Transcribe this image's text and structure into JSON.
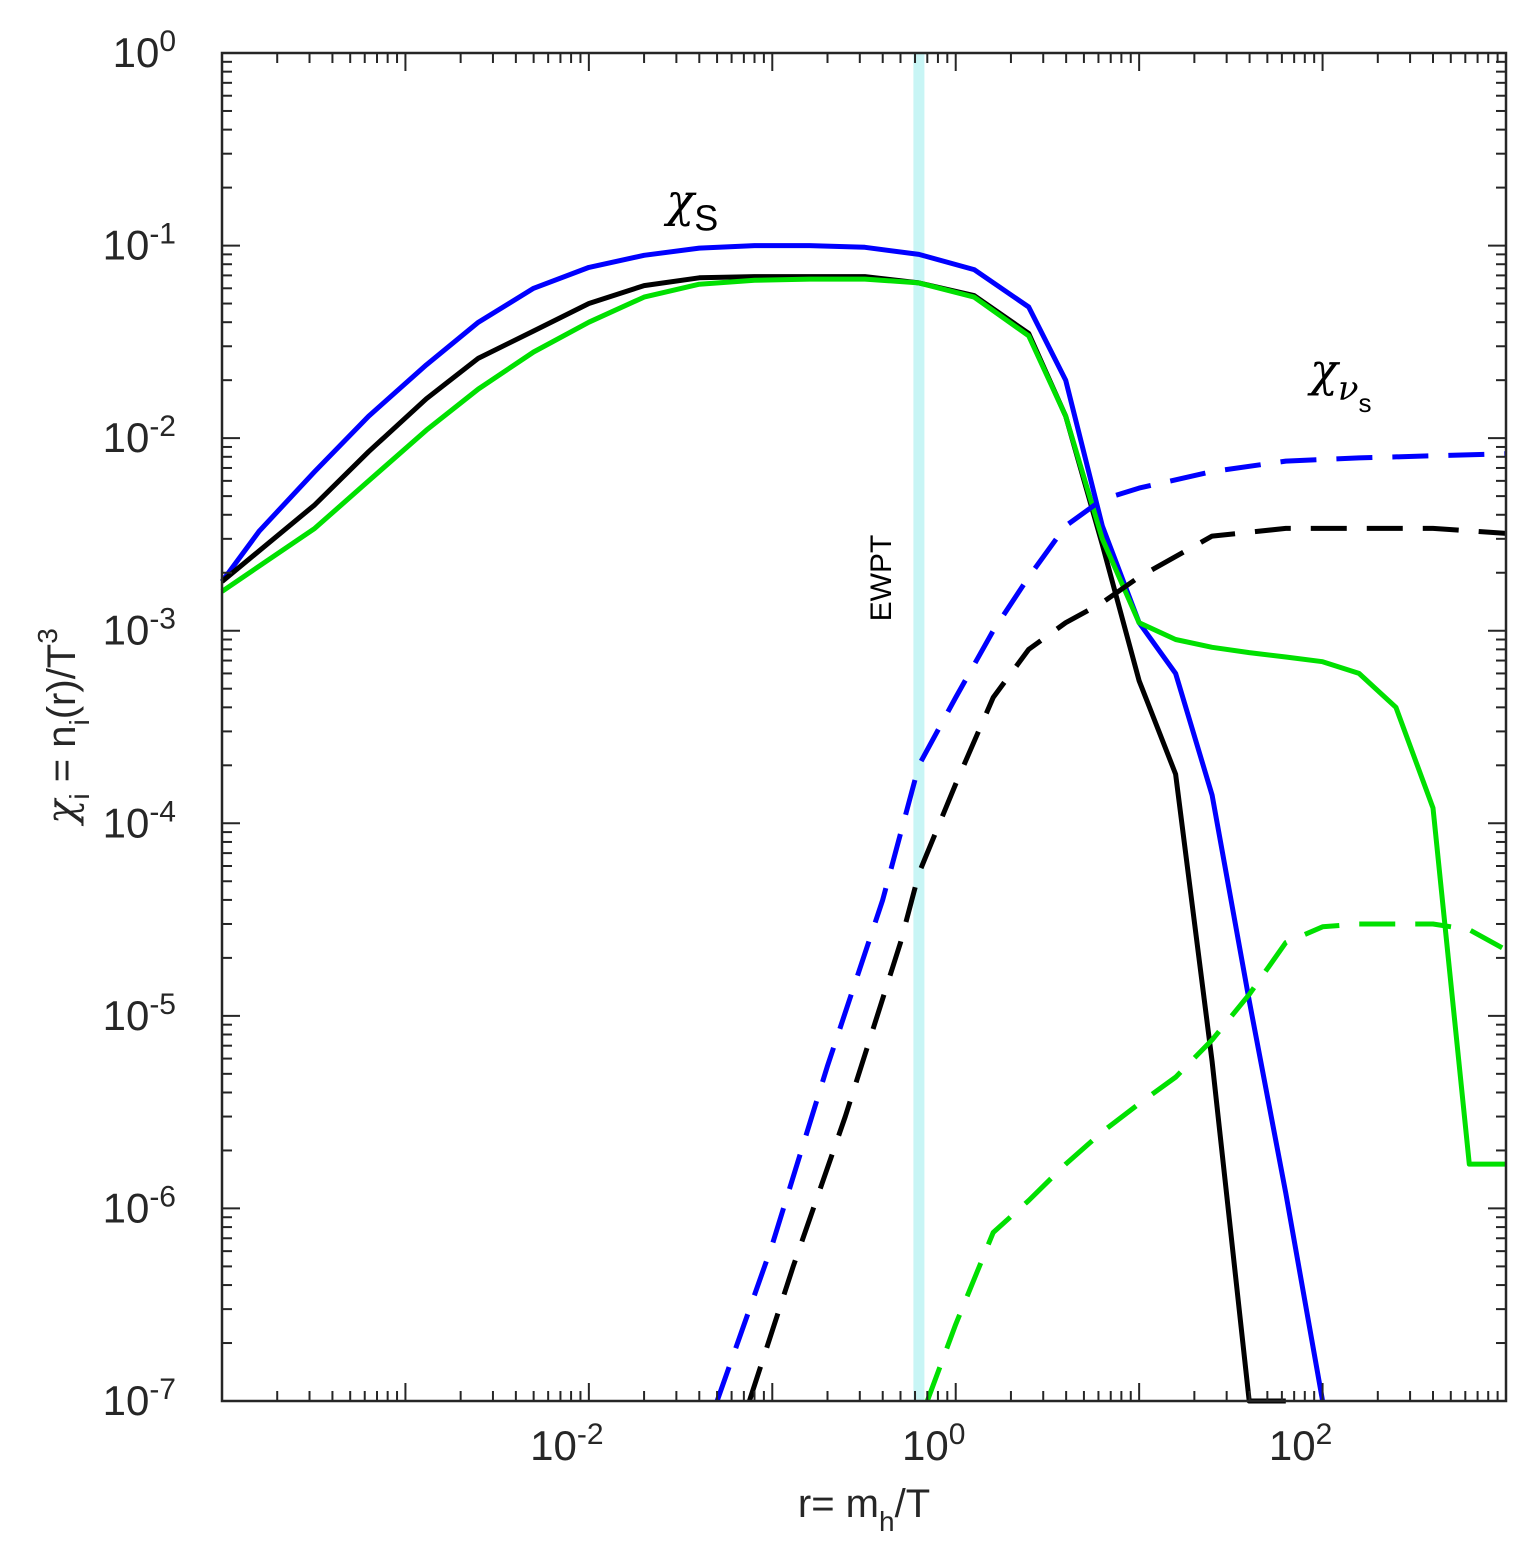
{
  "chart_data": {
    "type": "line",
    "xscale": "log",
    "yscale": "log",
    "xlim": [
      0.0001,
      1000
    ],
    "ylim": [
      1e-07,
      1
    ],
    "xlabel": {
      "base": "r= m",
      "sub": "h",
      "tail": "/T"
    },
    "ylabel": {
      "base": "χ",
      "sub": "i",
      "mid": " = n",
      "sub2": "i",
      "tail": "(r)/T",
      "sup": "3"
    },
    "x_ticks": [
      {
        "value": 0.01,
        "base": "10",
        "exp": "-2"
      },
      {
        "value": 1,
        "base": "10",
        "exp": "0"
      },
      {
        "value": 100,
        "base": "10",
        "exp": "2"
      }
    ],
    "y_ticks": [
      {
        "value": 1,
        "base": "10",
        "exp": "0"
      },
      {
        "value": 0.1,
        "base": "10",
        "exp": "-1"
      },
      {
        "value": 0.01,
        "base": "10",
        "exp": "-2"
      },
      {
        "value": 0.001,
        "base": "10",
        "exp": "-3"
      },
      {
        "value": 0.0001,
        "base": "10",
        "exp": "-4"
      },
      {
        "value": 1e-05,
        "base": "10",
        "exp": "-5"
      },
      {
        "value": 1e-06,
        "base": "10",
        "exp": "-6"
      },
      {
        "value": 1e-07,
        "base": "10",
        "exp": "-7"
      }
    ],
    "grid": false,
    "vline": {
      "x": 0.63,
      "label": "EWPT",
      "color": "#c8f5f5"
    },
    "annotations": [
      {
        "text": "χ",
        "sub": "S",
        "x": 0.03,
        "y": 0.18
      },
      {
        "text": "χ",
        "sub": "ν",
        "subsub": "s",
        "x": 100,
        "y": 0.018
      }
    ],
    "series": [
      {
        "color": "#0000ff",
        "style": "solid",
        "x": [
          0.0001,
          0.00016,
          0.00032,
          0.00063,
          0.0013,
          0.0025,
          0.005,
          0.01,
          0.02,
          0.04,
          0.08,
          0.16,
          0.32,
          0.63,
          1.26,
          2.5,
          3.98,
          6.3,
          10,
          15.8,
          25,
          39.8,
          63,
          100
        ],
        "y": [
          0.0018,
          0.0033,
          0.0067,
          0.013,
          0.024,
          0.04,
          0.06,
          0.077,
          0.089,
          0.097,
          0.1,
          0.1,
          0.098,
          0.09,
          0.075,
          0.048,
          0.02,
          0.0035,
          0.0011,
          0.0006,
          0.00014,
          1.2e-05,
          1.2e-06,
          1e-07
        ]
      },
      {
        "color": "#000000",
        "style": "solid",
        "x": [
          0.0001,
          0.00032,
          0.00063,
          0.0013,
          0.0025,
          0.005,
          0.01,
          0.02,
          0.04,
          0.08,
          0.16,
          0.32,
          0.63,
          1.26,
          2.5,
          3.98,
          6.3,
          10,
          15.8,
          25,
          39.8,
          63
        ],
        "y": [
          0.0018,
          0.0045,
          0.0085,
          0.016,
          0.026,
          0.036,
          0.05,
          0.062,
          0.068,
          0.069,
          0.069,
          0.069,
          0.064,
          0.055,
          0.035,
          0.013,
          0.0028,
          0.00055,
          0.00018,
          5.8e-06,
          1e-07,
          1e-07
        ]
      },
      {
        "color": "#00e000",
        "style": "solid",
        "x": [
          0.0001,
          0.00032,
          0.00063,
          0.0013,
          0.0025,
          0.005,
          0.01,
          0.02,
          0.04,
          0.08,
          0.16,
          0.32,
          0.63,
          1.26,
          2.5,
          3.98,
          6.3,
          10,
          15.8,
          25,
          39.8,
          63,
          100,
          158,
          251,
          400,
          631,
          1000
        ],
        "y": [
          0.0016,
          0.0034,
          0.006,
          0.011,
          0.018,
          0.028,
          0.04,
          0.054,
          0.063,
          0.066,
          0.067,
          0.067,
          0.064,
          0.054,
          0.034,
          0.013,
          0.003,
          0.0011,
          0.0009,
          0.00082,
          0.00077,
          0.00073,
          0.00069,
          0.0006,
          0.0004,
          0.00012,
          1.7e-06,
          1.7e-06
        ]
      },
      {
        "color": "#0000ff",
        "style": "dashed",
        "x": [
          0.05,
          0.1,
          0.2,
          0.4,
          0.63,
          1,
          1.6,
          2.5,
          3.98,
          6.3,
          10,
          25,
          63,
          158,
          400,
          1000
        ],
        "y": [
          1e-07,
          6.5e-07,
          5.5e-06,
          4e-05,
          0.0002,
          0.00045,
          0.001,
          0.0019,
          0.0035,
          0.0048,
          0.0055,
          0.0067,
          0.0076,
          0.0079,
          0.0081,
          0.0083
        ]
      },
      {
        "color": "#000000",
        "style": "dashed",
        "x": [
          0.075,
          0.13,
          0.25,
          0.5,
          0.63,
          1,
          1.6,
          2.5,
          3.98,
          6.3,
          10,
          25,
          63,
          158,
          400,
          1000
        ],
        "y": [
          1e-07,
          5e-07,
          3e-06,
          2.4e-05,
          5.5e-05,
          0.00016,
          0.00045,
          0.0008,
          0.0011,
          0.0014,
          0.0019,
          0.0031,
          0.0034,
          0.0034,
          0.0034,
          0.0032
        ]
      },
      {
        "color": "#00e000",
        "style": "dashed",
        "x": [
          0.7,
          1,
          1.6,
          2.5,
          3.98,
          6.3,
          10,
          15.8,
          25,
          40,
          63,
          100,
          158,
          251,
          400,
          631,
          1000
        ],
        "y": [
          1e-07,
          2.5e-07,
          7.5e-07,
          1.1e-06,
          1.7e-06,
          2.5e-06,
          3.5e-06,
          4.8e-06,
          7.5e-06,
          1.3e-05,
          2.4e-05,
          2.9e-05,
          3e-05,
          3e-05,
          3e-05,
          2.8e-05,
          2.2e-05
        ]
      }
    ]
  }
}
